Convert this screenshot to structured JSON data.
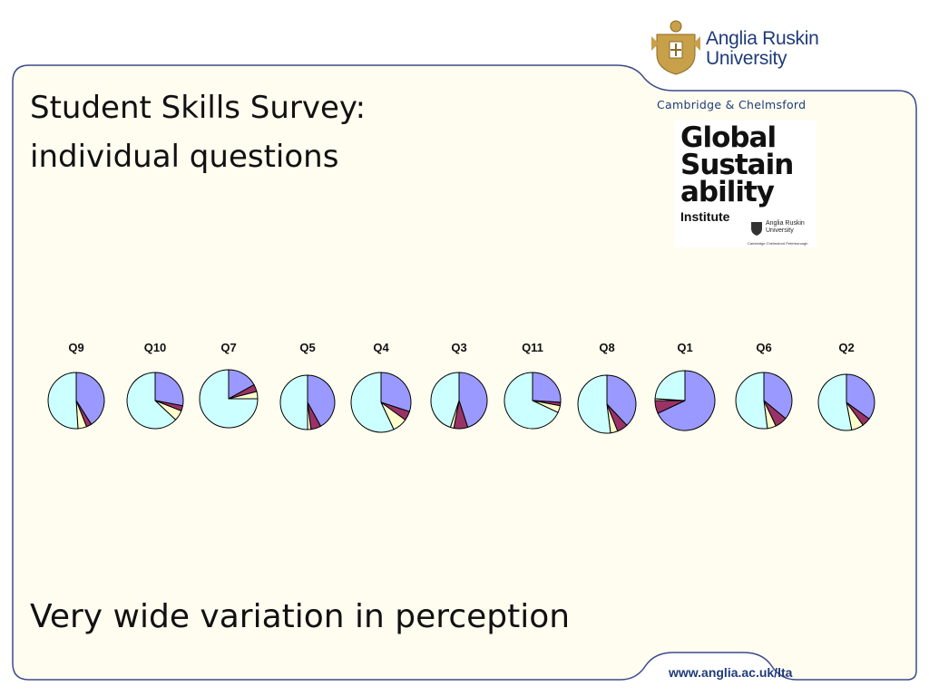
{
  "slide": {
    "title_line1": "Student Skills Survey:",
    "title_line2": "individual questions",
    "footer": "Very wide variation in perception",
    "url": "www.anglia.ac.uk/lta",
    "colors": {
      "background": "#fffdf0",
      "border": "#3b4a8a"
    }
  },
  "branding": {
    "university_line1": "Anglia Ruskin",
    "university_line2": "University",
    "campus": "Cambridge & Chelmsford",
    "gsi_line1": "Global",
    "gsi_line2": "Sustain",
    "gsi_line3": "ability",
    "gsi_line4": "Institute",
    "gsi_small_line1": "Anglia Ruskin",
    "gsi_small_line2": "University",
    "gsi_tiny": "Cambridge Chelmsford Peterborough"
  },
  "chart_data": {
    "type": "pie",
    "slice_colors": [
      "#9999ff",
      "#993366",
      "#ffffcc",
      "#ccffff"
    ],
    "pies": [
      {
        "label": "Q9",
        "values": [
          41,
          3,
          5,
          51
        ]
      },
      {
        "label": "Q10",
        "values": [
          28,
          3,
          6,
          63
        ]
      },
      {
        "label": "Q7",
        "values": [
          17,
          4,
          4,
          75
        ]
      },
      {
        "label": "Q5",
        "values": [
          42,
          6,
          2,
          50
        ]
      },
      {
        "label": "Q4",
        "values": [
          30,
          5,
          8,
          57
        ]
      },
      {
        "label": "Q3",
        "values": [
          45,
          8,
          2,
          45
        ]
      },
      {
        "label": "Q11",
        "values": [
          26,
          2,
          4,
          68
        ]
      },
      {
        "label": "Q8",
        "values": [
          38,
          6,
          4,
          52
        ]
      },
      {
        "label": "Q1",
        "values": [
          68,
          7,
          1,
          24
        ]
      },
      {
        "label": "Q6",
        "values": [
          36,
          7,
          5,
          52
        ]
      },
      {
        "label": "Q2",
        "values": [
          35,
          5,
          7,
          53
        ]
      }
    ]
  }
}
